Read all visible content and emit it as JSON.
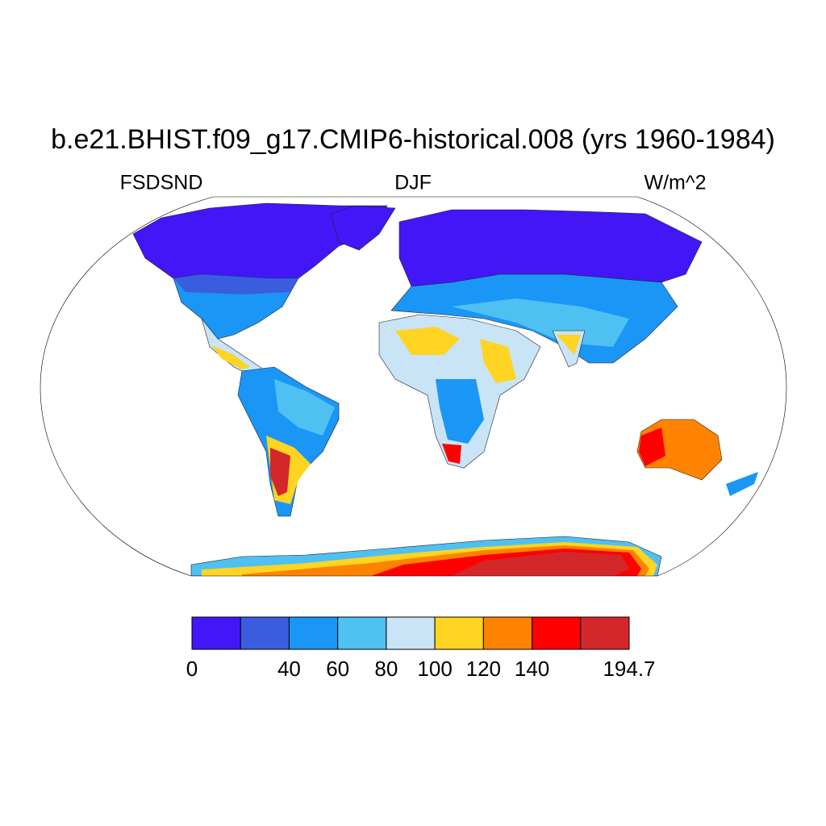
{
  "title": "b.e21.BHIST.f09_g17.CMIP6-historical.008 (yrs 1960-1984)",
  "left_label": "FSDSND",
  "center_label": "DJF",
  "right_label": "W/m^2",
  "colorbar": {
    "colors": [
      "#4216f7",
      "#3a5de0",
      "#1a96f7",
      "#4fc0f2",
      "#c9e4f7",
      "#ffd422",
      "#ff8300",
      "#ff0000",
      "#d4272a"
    ],
    "levels": [
      0,
      null,
      40,
      60,
      80,
      100,
      120,
      140,
      null,
      194.7
    ]
  }
}
